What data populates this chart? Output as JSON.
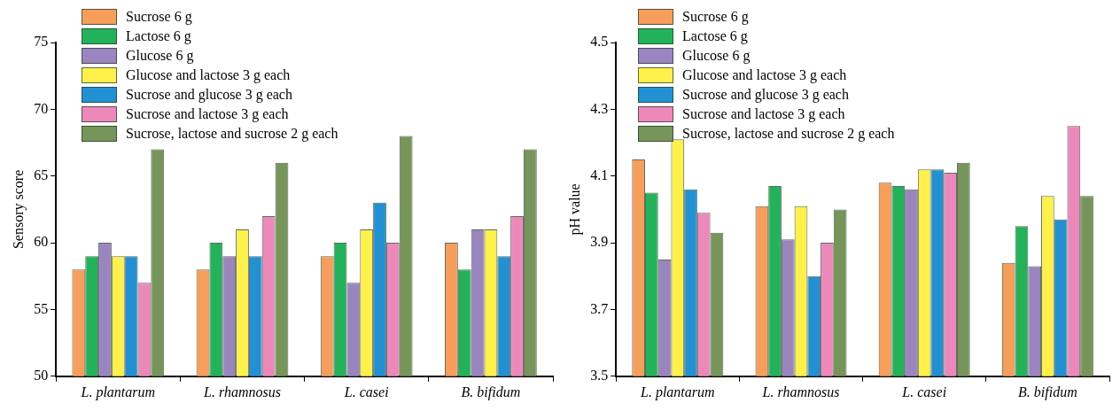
{
  "chart_data": [
    {
      "type": "bar",
      "ylabel": "Sensory score",
      "categories": [
        "L. plantarum",
        "L. rhamnosus",
        "L. casei",
        "B. bifidum"
      ],
      "ylim": [
        50,
        75
      ],
      "yticks": [
        50,
        55,
        60,
        65,
        70,
        75
      ],
      "grid": false,
      "legend": "top left",
      "series": [
        {
          "name": "Sucrose 6 g",
          "color": "#f79e5a",
          "values": [
            58,
            58,
            59,
            60
          ]
        },
        {
          "name": "Lactose 6 g",
          "color": "#22b35a",
          "values": [
            59,
            60,
            60,
            58
          ]
        },
        {
          "name": "Glucose 6 g",
          "color": "#9b85c0",
          "values": [
            60,
            59,
            57,
            61
          ]
        },
        {
          "name": "Glucose and lactose 3 g each",
          "color": "#fff04a",
          "values": [
            59,
            61,
            61,
            61
          ]
        },
        {
          "name": "Sucrose and glucose 3 g each",
          "color": "#2291d4",
          "values": [
            59,
            59,
            63,
            59
          ]
        },
        {
          "name": "Sucrose and lactose 3 g each",
          "color": "#ee88bb",
          "values": [
            57,
            62,
            60,
            62
          ]
        },
        {
          "name": "Sucrose, lactose and sucrose 2 g each",
          "color": "#76955a",
          "values": [
            67,
            66,
            68,
            67
          ]
        }
      ]
    },
    {
      "type": "bar",
      "ylabel": "pH value",
      "categories": [
        "L. plantarum",
        "L. rhamnosus",
        "L. casei",
        "B. bifidum"
      ],
      "ylim": [
        3.5,
        4.5
      ],
      "yticks": [
        3.5,
        3.7,
        3.9,
        4.1,
        4.3,
        4.5
      ],
      "grid": false,
      "legend": "top left",
      "series": [
        {
          "name": "Sucrose 6 g",
          "color": "#f79e5a",
          "values": [
            4.15,
            4.01,
            4.08,
            3.84
          ]
        },
        {
          "name": "Lactose 6 g",
          "color": "#22b35a",
          "values": [
            4.05,
            4.07,
            4.07,
            3.95
          ]
        },
        {
          "name": "Glucose 6 g",
          "color": "#9b85c0",
          "values": [
            3.85,
            3.91,
            4.06,
            3.83
          ]
        },
        {
          "name": "Glucose and lactose 3 g each",
          "color": "#fff04a",
          "values": [
            4.21,
            4.01,
            4.12,
            4.04
          ]
        },
        {
          "name": "Sucrose and glucose 3 g each",
          "color": "#2291d4",
          "values": [
            4.06,
            3.8,
            4.12,
            3.97
          ]
        },
        {
          "name": "Sucrose and lactose 3 g each",
          "color": "#ee88bb",
          "values": [
            3.99,
            3.9,
            4.11,
            4.25
          ]
        },
        {
          "name": "Sucrose, lactose and sucrose 2 g each",
          "color": "#76955a",
          "values": [
            3.93,
            4.0,
            4.14,
            4.04
          ]
        }
      ]
    }
  ]
}
